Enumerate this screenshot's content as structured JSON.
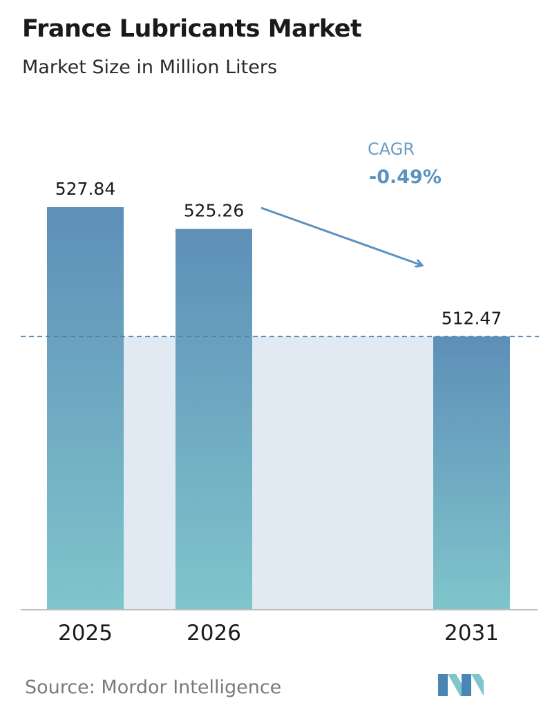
{
  "title": "France Lubricants Market",
  "subtitle": "Market Size in Million Liters",
  "source": "Source: Mordor Intelligence",
  "cagr": {
    "label": "CAGR",
    "value": "-0.49%"
  },
  "colors": {
    "bar_top": "#5e8fb8",
    "bar_bottom": "#7fc5cb",
    "band": "#e1eaf2",
    "dashed_line": "#4f7fa8",
    "arrow": "#5b92bf",
    "axis": "#bdbdbd",
    "logo": "#4a86b5"
  },
  "chart_data": {
    "type": "bar",
    "title": "France Lubricants Market",
    "subtitle": "Market Size in Million Liters",
    "categories": [
      "2025",
      "2026",
      "2031"
    ],
    "values": [
      527.84,
      525.26,
      512.47
    ],
    "value_labels": [
      "527.84",
      "525.26",
      "512.47"
    ],
    "ylabel": "",
    "xlabel": "",
    "grid": false,
    "annotation": {
      "label": "CAGR",
      "value": "-0.49%"
    }
  }
}
